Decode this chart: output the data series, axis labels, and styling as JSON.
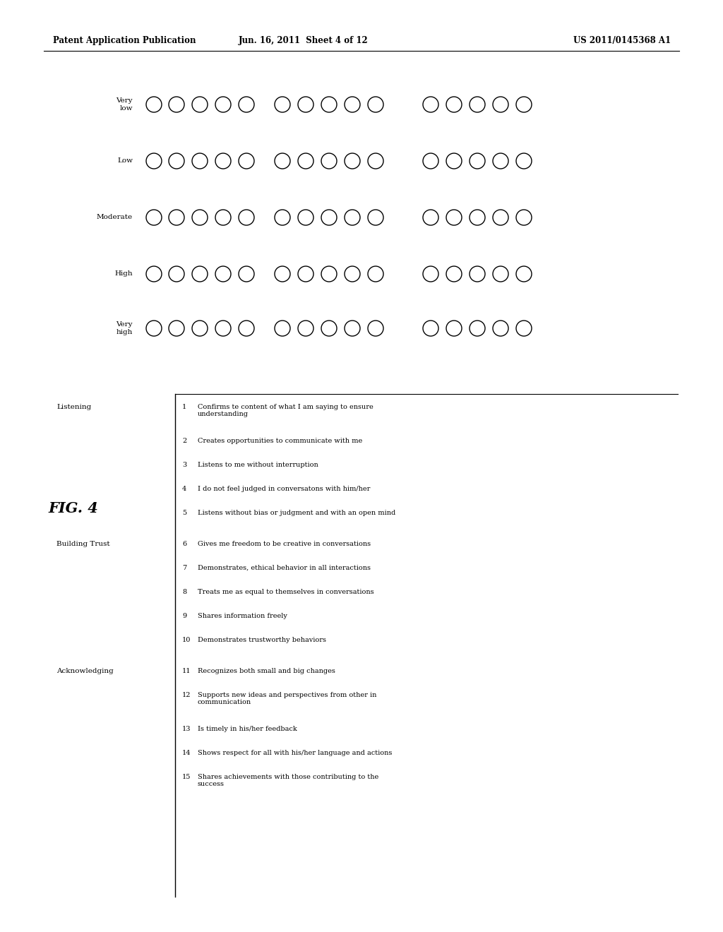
{
  "header_left": "Patent Application Publication",
  "header_mid": "Jun. 16, 2011  Sheet 4 of 12",
  "header_right": "US 2011/0145368 A1",
  "fig_label": "FIG. 4",
  "rating_labels_top_to_bottom": [
    "Very\nlow",
    "Low",
    "Moderate",
    "High",
    "Very\nhigh"
  ],
  "groups": [
    {
      "name": "Listening",
      "items": [
        {
          "num": "1",
          "text": "Confirms te content of what I am saying to ensure\nunderstanding"
        },
        {
          "num": "2",
          "text": "Creates opportunities to communicate with me"
        },
        {
          "num": "3",
          "text": "Listens to me without interruption"
        },
        {
          "num": "4",
          "text": "I do not feel judged in conversatons with him/her"
        },
        {
          "num": "5",
          "text": "Listens without bias or judgment and with an open mind"
        }
      ]
    },
    {
      "name": "Building Trust",
      "items": [
        {
          "num": "6",
          "text": "Gives me freedom to be creative in conversations"
        },
        {
          "num": "7",
          "text": "Demonstrates, ethical behavior in all interactions"
        },
        {
          "num": "8",
          "text": "Treats me as equal to themselves in conversations"
        },
        {
          "num": "9",
          "text": "Shares information freely"
        },
        {
          "num": "10",
          "text": "Demonstrates trustworthy behaviors"
        }
      ]
    },
    {
      "name": "Acknowledging",
      "items": [
        {
          "num": "11",
          "text": "Recognizes both small and big changes"
        },
        {
          "num": "12",
          "text": "Supports new ideas and perspectives from other in\ncommunication"
        },
        {
          "num": "13",
          "text": "Is timely in his/her feedback"
        },
        {
          "num": "14",
          "text": "Shows respect for all with his/her language and actions"
        },
        {
          "num": "15",
          "text": "Shares achievements with those contributing to the\nsuccess"
        }
      ]
    }
  ],
  "bg_color": "#ffffff",
  "text_color": "#000000",
  "header_fontsize": 8.5,
  "body_fontsize": 7.0,
  "label_fontsize": 7.5,
  "fig_label_fontsize": 15
}
